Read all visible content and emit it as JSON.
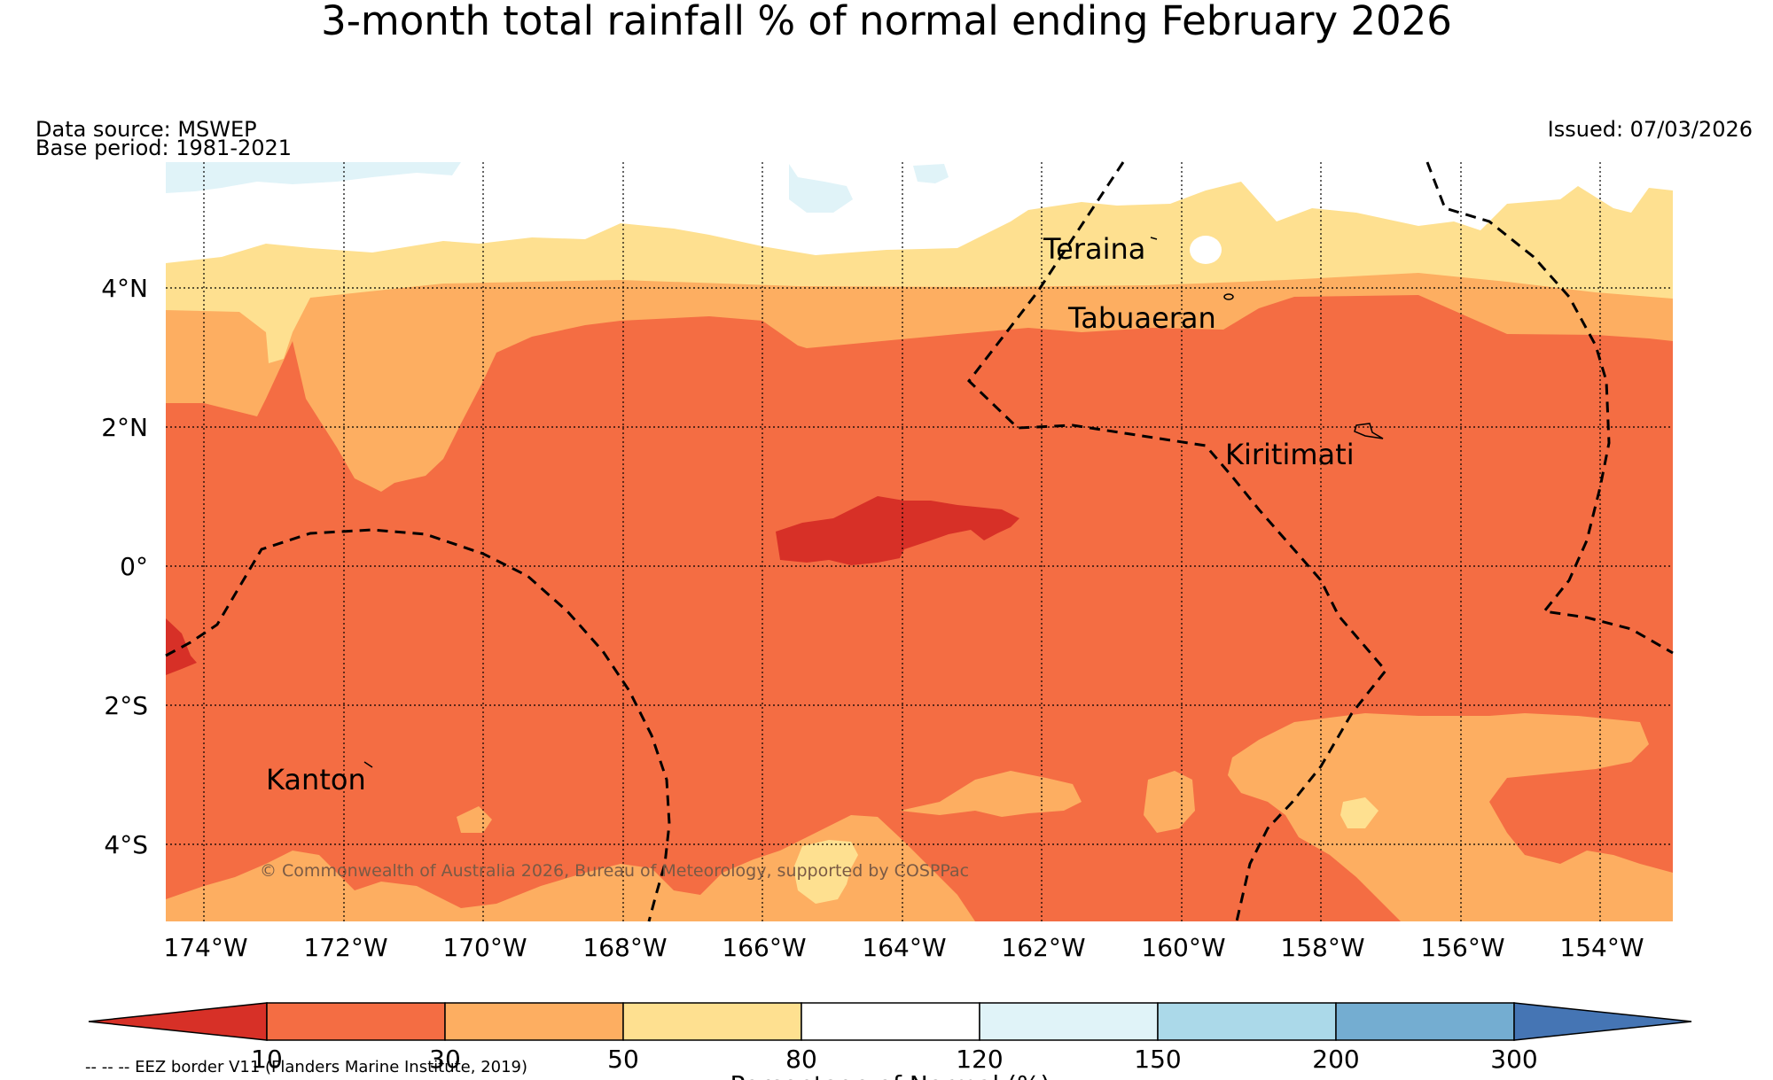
{
  "title": "3-month total rainfall % of normal ending February 2026",
  "meta": {
    "data_source": "Data source: MSWEP",
    "base_period": "Base period: 1981-2021",
    "issued": "Issued: 07/03/2026"
  },
  "axes": {
    "lon_labels": [
      "174°W",
      "172°W",
      "170°W",
      "168°W",
      "166°W",
      "164°W",
      "162°W",
      "160°W",
      "158°W",
      "156°W",
      "154°W"
    ],
    "lat_labels": [
      "4°N",
      "2°N",
      "0°",
      "2°S",
      "4°S"
    ]
  },
  "places": [
    {
      "name": "Teraina"
    },
    {
      "name": "Tabuaeran"
    },
    {
      "name": "Kiritimati"
    },
    {
      "name": "Kanton"
    }
  ],
  "credit": "© Commonwealth of Australia 2026, Bureau of Meteorology, supported by COSPPac",
  "colorbar": {
    "ticks": [
      "10",
      "30",
      "50",
      "80",
      "120",
      "150",
      "200",
      "300"
    ],
    "label": "Percentage of Normal (%)",
    "colors": [
      "#d73027",
      "#f46d43",
      "#fdae61",
      "#fee090",
      "#ffffff",
      "#e0f3f8",
      "#abd9e9",
      "#74add1",
      "#4575b4"
    ]
  },
  "legend_note": "-- -- -- EEZ border V11 (Flanders Marine Institute, 2019)",
  "colors": {
    "very_dry": "#d73027",
    "dry": "#f46d43",
    "below": "#fdae61",
    "slightly_below": "#fee090",
    "normal": "#ffffff",
    "slightly_above": "#e0f3f8"
  }
}
